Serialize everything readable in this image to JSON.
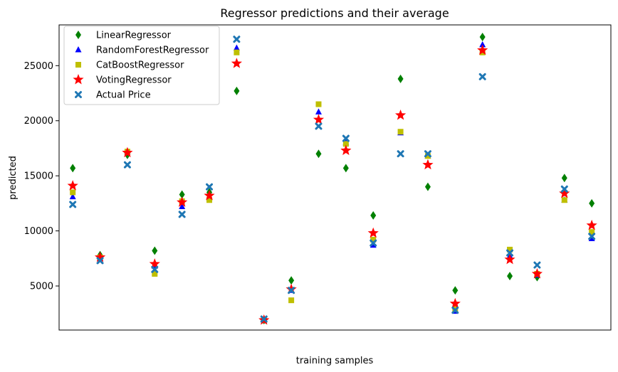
{
  "chart_data": {
    "type": "scatter",
    "title": "Regressor predictions and their average",
    "xlabel": "training samples",
    "ylabel": "predicted",
    "xlim": [
      -0.5,
      19.7
    ],
    "ylim": [
      1000,
      28700
    ],
    "yticks": [
      5000,
      10000,
      15000,
      20000,
      25000
    ],
    "legend_position": "top-left",
    "grid": false,
    "x": [
      0,
      1,
      2,
      3,
      4,
      5,
      6,
      7,
      8,
      9,
      10,
      11,
      12,
      13,
      14,
      15,
      16,
      17,
      18,
      19
    ],
    "series": [
      {
        "name": "LinearRegressor",
        "marker": "diamond",
        "color": "#008000",
        "values": [
          15700,
          7800,
          16900,
          8200,
          13300,
          13500,
          22700,
          1900,
          5500,
          17000,
          15700,
          11400,
          23800,
          14000,
          4600,
          27600,
          5900,
          5800,
          14800,
          12500
        ]
      },
      {
        "name": "RandomForestRegressor",
        "marker": "triangle",
        "color": "#0000ff",
        "values": [
          13100,
          7500,
          17200,
          6800,
          12200,
          13100,
          26600,
          1900,
          4600,
          20800,
          18000,
          8700,
          18900,
          16800,
          2700,
          26900,
          7700,
          6000,
          12800,
          9300
        ]
      },
      {
        "name": "CatBoostRegressor",
        "marker": "square",
        "color": "#bfbf00",
        "values": [
          13500,
          7600,
          17200,
          6100,
          12700,
          12800,
          26200,
          1900,
          3700,
          21500,
          17900,
          9200,
          19000,
          16800,
          2900,
          26200,
          8300,
          6100,
          12800,
          9900
        ]
      },
      {
        "name": "VotingRegressor",
        "marker": "star",
        "color": "#ff0000",
        "values": [
          14100,
          7600,
          17100,
          7000,
          12600,
          13200,
          25200,
          1900,
          4700,
          20100,
          17300,
          9800,
          20500,
          16000,
          3400,
          26400,
          7400,
          6100,
          13400,
          10500
        ]
      },
      {
        "name": "Actual Price",
        "marker": "x",
        "color": "#1f77b4",
        "values": [
          12400,
          7300,
          16000,
          6500,
          11500,
          14000,
          27400,
          2000,
          4600,
          19500,
          18400,
          8900,
          17000,
          17000,
          2800,
          24000,
          8000,
          6900,
          13800,
          9500
        ]
      }
    ]
  }
}
